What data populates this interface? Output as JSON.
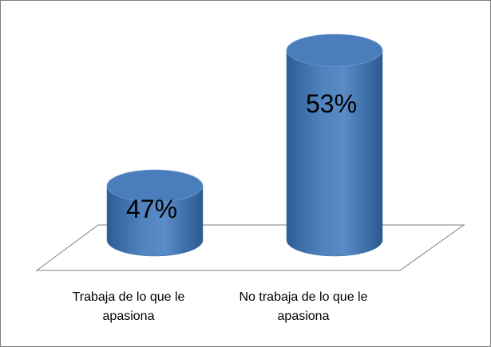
{
  "chart_data": {
    "type": "cylinder",
    "categories": [
      "Trabaja de lo que le apasiona",
      "No trabaja de lo que le apasiona"
    ],
    "values": [
      47,
      53
    ],
    "value_labels": [
      "47%",
      "53%"
    ],
    "color": "#4f81bd",
    "ylim": [
      44.6,
      54.5
    ]
  }
}
